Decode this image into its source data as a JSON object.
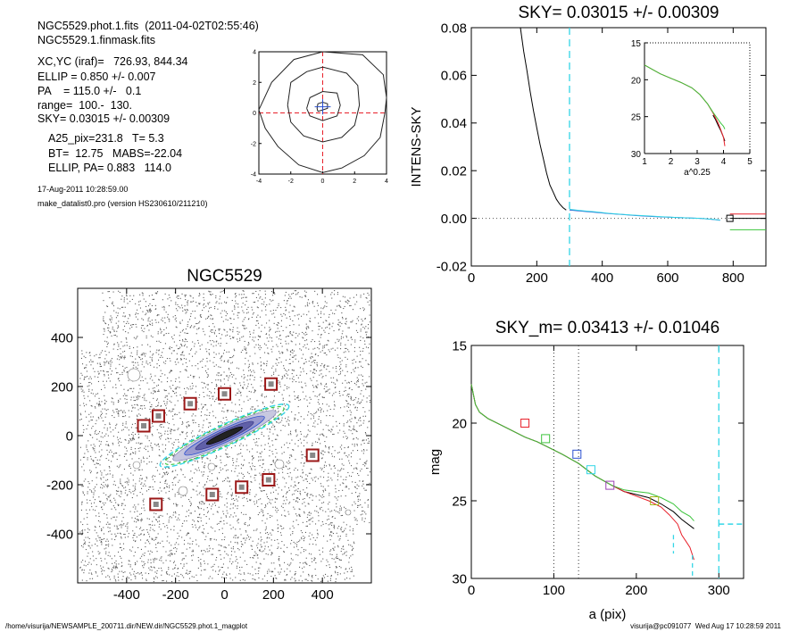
{
  "header": {
    "lines": [
      "NGC5529.phot.1.fits  (2011-04-02T02:55:46)",
      "NGC5529.1.finmask.fits",
      "XC,YC (iraf)=   726.93, 844.34",
      "ELLIP = 0.850 +/- 0.007",
      "PA    = 115.0 +/-   0.1",
      "range=  100.-  130.",
      "SKY= 0.03015 +/- 0.00309",
      "A25_pix=231.8   T= 5.3",
      "BT=  12.75   MABS=-22.04",
      "ELLIP, PA= 0.883   114.0"
    ],
    "small_lines": [
      "17-Aug-2011 10:28:59.00",
      "make_datalist0.pro (version HS230610/211210)"
    ]
  },
  "footer": {
    "path": "/home/visurija/NEWSAMPLE_200711.dir/NEW.dir/NGC5529.phot.1_magplot",
    "user": "visurija@pc091077  Wed Aug 17 10:28:59 2011"
  },
  "colors": {
    "black": "#000000",
    "red": "#e8202a",
    "green": "#3cc43c",
    "blue": "#2a4fd0",
    "cyan": "#33d6e6",
    "marker": "#9b1818",
    "olive": "#a7b41a",
    "purple": "#9a42b4"
  },
  "chart_data": [
    {
      "type": "contour",
      "xlim": [
        -4,
        4
      ],
      "ylim": [
        -4,
        4
      ],
      "xticks": [
        -4,
        -2,
        0,
        2,
        4
      ],
      "yticks": [
        -4,
        -2,
        0,
        2,
        4
      ],
      "crosshair": [
        0,
        0
      ],
      "contours": [
        [
          [
            -0.3,
            0.1
          ],
          [
            0,
            0.2
          ],
          [
            0.3,
            0.3
          ],
          [
            0.3,
            0.6
          ],
          [
            0,
            0.7
          ],
          [
            -0.3,
            0.6
          ],
          [
            -0.35,
            0.3
          ],
          [
            -0.3,
            0.1
          ]
        ],
        [
          [
            -1,
            0.3
          ],
          [
            -0.8,
            1
          ],
          [
            0,
            1.4
          ],
          [
            0.9,
            1.3
          ],
          [
            1.1,
            0.5
          ],
          [
            0.9,
            -0.2
          ],
          [
            0,
            -0.5
          ],
          [
            -0.8,
            -0.2
          ],
          [
            -1,
            0.3
          ]
        ],
        [
          [
            -2.2,
            0.5
          ],
          [
            -2,
            2
          ],
          [
            -1,
            2.7
          ],
          [
            0,
            3
          ],
          [
            1.5,
            2.6
          ],
          [
            2.2,
            1.8
          ],
          [
            2.3,
            0.5
          ],
          [
            2,
            -0.8
          ],
          [
            1.2,
            -1.6
          ],
          [
            0,
            -1.9
          ],
          [
            -1.2,
            -1.5
          ],
          [
            -2,
            -0.6
          ],
          [
            -2.2,
            0.5
          ]
        ],
        [
          [
            -4,
            0.2
          ],
          [
            -3.2,
            2
          ],
          [
            -1.8,
            3.5
          ],
          [
            0,
            4
          ],
          [
            2.5,
            3.8
          ],
          [
            3.8,
            2.5
          ],
          [
            4,
            1
          ],
          [
            3.9,
            0
          ],
          [
            3.6,
            -1.6
          ],
          [
            2.6,
            -2.8
          ],
          [
            1.2,
            -3.6
          ],
          [
            0,
            -3.9
          ],
          [
            -1.5,
            -3.4
          ],
          [
            -2.8,
            -2.2
          ],
          [
            -3.6,
            -1
          ],
          [
            -4,
            0.2
          ]
        ]
      ]
    },
    {
      "type": "line",
      "title": "SKY= 0.03015 +/- 0.00309",
      "xlabel": "",
      "ylabel": "INTENS-SKY",
      "xlim": [
        0,
        900
      ],
      "ylim": [
        -0.02,
        0.08
      ],
      "xticks": [
        0,
        200,
        400,
        600,
        800
      ],
      "yticks": [
        -0.02,
        0.0,
        0.02,
        0.04,
        0.06,
        0.08
      ],
      "ytick_labels": [
        "-0.02",
        "0.00",
        "0.02",
        "0.04",
        "0.06",
        "0.08"
      ],
      "vline_x": 300,
      "zero_line": true,
      "series": [
        {
          "color": "black",
          "x": [
            150,
            160,
            170,
            180,
            190,
            200,
            210,
            220,
            230,
            240,
            250,
            260,
            270,
            280,
            290
          ],
          "y": [
            0.08,
            0.07,
            0.062,
            0.053,
            0.045,
            0.038,
            0.031,
            0.025,
            0.019,
            0.014,
            0.011,
            0.008,
            0.006,
            0.0045,
            0.0035
          ]
        },
        {
          "color": "blue",
          "x": [
            300,
            340,
            380,
            420,
            460,
            500,
            540,
            580,
            620,
            660,
            700,
            740,
            760
          ],
          "y": [
            0.0035,
            0.003,
            0.0025,
            0.002,
            0.0016,
            0.0012,
            0.0009,
            0.0006,
            0.0004,
            0.0002,
            0.0,
            -0.0005,
            -0.0008
          ]
        },
        {
          "color": "cyan",
          "x": [
            300,
            340,
            380,
            420,
            460,
            500,
            540,
            580,
            620,
            660,
            700,
            740,
            760
          ],
          "y": [
            0.0038,
            0.0032,
            0.0027,
            0.0021,
            0.0017,
            0.0013,
            0.001,
            0.0007,
            0.0004,
            0.0002,
            0.0,
            -0.0004,
            -0.0007
          ]
        },
        {
          "color": "red",
          "x": [
            790,
            900
          ],
          "y": [
            0.0018,
            0.0018
          ]
        },
        {
          "color": "black",
          "x": [
            790,
            900
          ],
          "y": [
            0.0,
            0.0
          ]
        },
        {
          "color": "green",
          "x": [
            790,
            900
          ],
          "y": [
            -0.0048,
            -0.0048
          ]
        }
      ],
      "marker": {
        "x": 790,
        "y": 0.0
      },
      "inset": {
        "xlabel": "a^0.25",
        "xlim": [
          1,
          5
        ],
        "ylim": [
          30,
          15
        ],
        "xticks": [
          1,
          2,
          3,
          4,
          5
        ],
        "yticks": [
          15,
          20,
          25,
          30
        ],
        "series": [
          {
            "color": "black",
            "x": [
              3.6,
              3.7,
              3.8,
              3.9,
              4.0,
              4.05
            ],
            "y": [
              24.8,
              25.4,
              26.2,
              26.9,
              27.8,
              28.3
            ]
          },
          {
            "color": "red",
            "x": [
              1,
              1.3,
              1.6,
              2,
              2.4,
              2.8,
              3.1,
              3.4,
              3.6,
              3.8,
              3.9,
              4.0,
              4.05
            ],
            "y": [
              18.0,
              18.6,
              19.2,
              19.8,
              20.4,
              21.1,
              22.0,
              23.3,
              24.5,
              25.9,
              26.8,
              27.8,
              29.0
            ]
          },
          {
            "color": "green",
            "x": [
              1,
              1.3,
              1.6,
              2,
              2.4,
              2.8,
              3.1,
              3.4,
              3.6,
              3.8,
              3.9,
              4.0,
              4.05
            ],
            "y": [
              18.0,
              18.6,
              19.2,
              19.8,
              20.4,
              21.1,
              22.0,
              23.3,
              24.4,
              25.4,
              25.9,
              26.3,
              26.7
            ]
          }
        ]
      }
    },
    {
      "type": "image",
      "title": "NGC5529",
      "xlim": [
        -600,
        600
      ],
      "ylim": [
        -600,
        600
      ],
      "xticks": [
        -400,
        -200,
        0,
        200,
        400
      ],
      "yticks": [
        -400,
        -200,
        0,
        200,
        400
      ],
      "ellipse": {
        "center": [
          0,
          0
        ],
        "semi_major": 290,
        "ellipticity": 0.85,
        "pa_deg": 115
      },
      "markers": [
        [
          -330,
          40
        ],
        [
          -270,
          80
        ],
        [
          -140,
          130
        ],
        [
          0,
          170
        ],
        [
          190,
          210
        ],
        [
          360,
          -80
        ],
        [
          180,
          -180
        ],
        [
          70,
          -210
        ],
        [
          -50,
          -240
        ],
        [
          -280,
          -280
        ]
      ]
    },
    {
      "type": "line",
      "title": "SKY_m=  0.03413 +/- 0.01046",
      "xlabel": "a (pix)",
      "ylabel": "mag",
      "xlim": [
        0,
        330
      ],
      "ylim": [
        30,
        15
      ],
      "xticks": [
        0,
        100,
        200,
        300
      ],
      "yticks": [
        15,
        20,
        25,
        30
      ],
      "vlines_dotted": [
        100,
        130
      ],
      "vlines_dashed": [
        245,
        268,
        300
      ],
      "hline_dashed": {
        "y": 26.5,
        "x": [
          300,
          330
        ]
      },
      "series": [
        {
          "color": "black",
          "x": [
            0,
            5,
            10,
            20,
            35,
            50,
            65,
            80,
            95,
            110,
            130,
            150,
            170,
            185,
            200,
            215,
            230,
            245,
            255,
            265,
            270
          ],
          "y": [
            17.5,
            18.8,
            19.3,
            19.7,
            20.1,
            20.5,
            20.9,
            21.2,
            21.6,
            22.0,
            22.6,
            23.4,
            24.0,
            24.4,
            24.6,
            24.8,
            25.2,
            25.7,
            26.2,
            26.6,
            26.8
          ]
        },
        {
          "color": "red",
          "x": [
            0,
            5,
            10,
            20,
            35,
            50,
            65,
            80,
            95,
            110,
            130,
            150,
            170,
            185,
            200,
            215,
            230,
            240,
            250,
            255,
            260,
            265,
            270
          ],
          "y": [
            17.5,
            18.8,
            19.3,
            19.7,
            20.1,
            20.5,
            20.9,
            21.2,
            21.6,
            22.0,
            22.6,
            23.4,
            24.0,
            24.4,
            24.7,
            25.0,
            25.4,
            25.9,
            26.5,
            27.2,
            27.6,
            28.0,
            28.8
          ]
        },
        {
          "color": "green",
          "x": [
            0,
            5,
            10,
            20,
            35,
            50,
            65,
            80,
            95,
            110,
            130,
            150,
            170,
            185,
            200,
            215,
            230,
            245,
            255,
            265,
            270
          ],
          "y": [
            17.5,
            18.8,
            19.3,
            19.7,
            20.1,
            20.5,
            20.9,
            21.2,
            21.6,
            22.0,
            22.6,
            23.4,
            24.0,
            24.3,
            24.4,
            24.5,
            24.8,
            25.2,
            25.7,
            26.0,
            26.3
          ]
        }
      ],
      "markers": [
        {
          "x": 65,
          "y": 20.0,
          "color": "red"
        },
        {
          "x": 90,
          "y": 21.0,
          "color": "green"
        },
        {
          "x": 128,
          "y": 22.0,
          "color": "blue"
        },
        {
          "x": 145,
          "y": 23.0,
          "color": "cyan"
        },
        {
          "x": 168,
          "y": 24.0,
          "color": "purple"
        },
        {
          "x": 222,
          "y": 25.0,
          "color": "olive"
        }
      ]
    }
  ]
}
